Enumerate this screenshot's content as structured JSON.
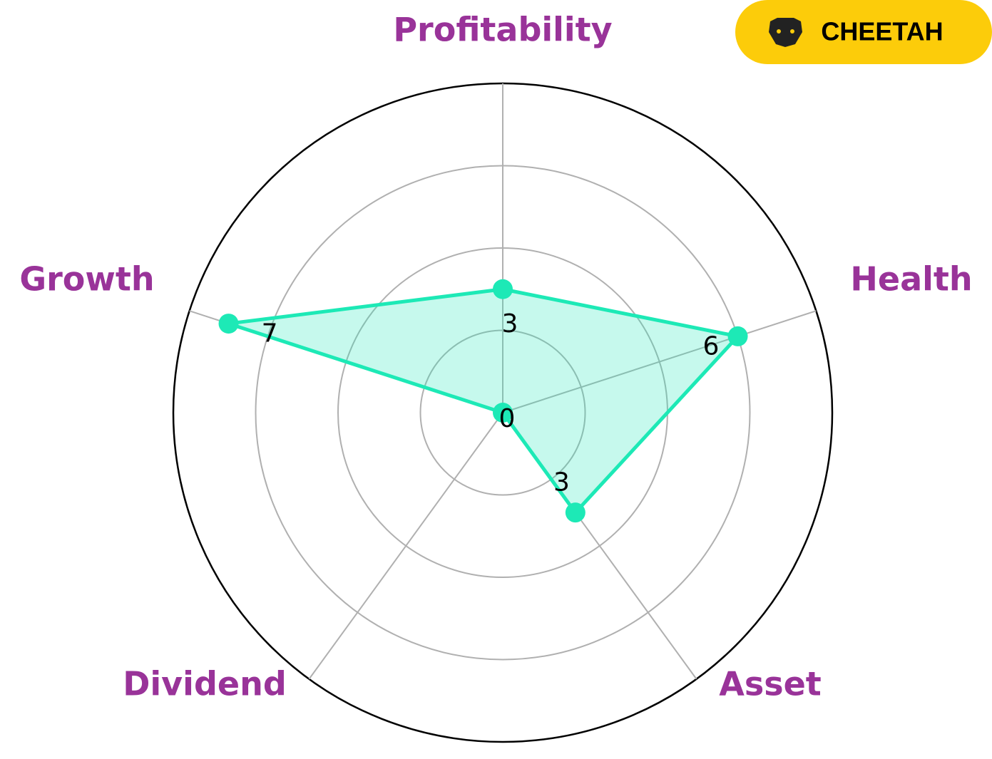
{
  "chart_data": {
    "type": "radar",
    "categories": [
      "Profitability",
      "Health",
      "Asset",
      "Dividend",
      "Growth"
    ],
    "values": [
      3,
      6,
      3,
      0,
      7
    ],
    "color": "#1de9b6",
    "label_color": "#993399",
    "rlim": [
      0,
      8
    ],
    "rticks": [
      2,
      4,
      6,
      8
    ],
    "grid": true
  },
  "badge": {
    "text": "CHEETAH",
    "color": "#fccc0a"
  }
}
